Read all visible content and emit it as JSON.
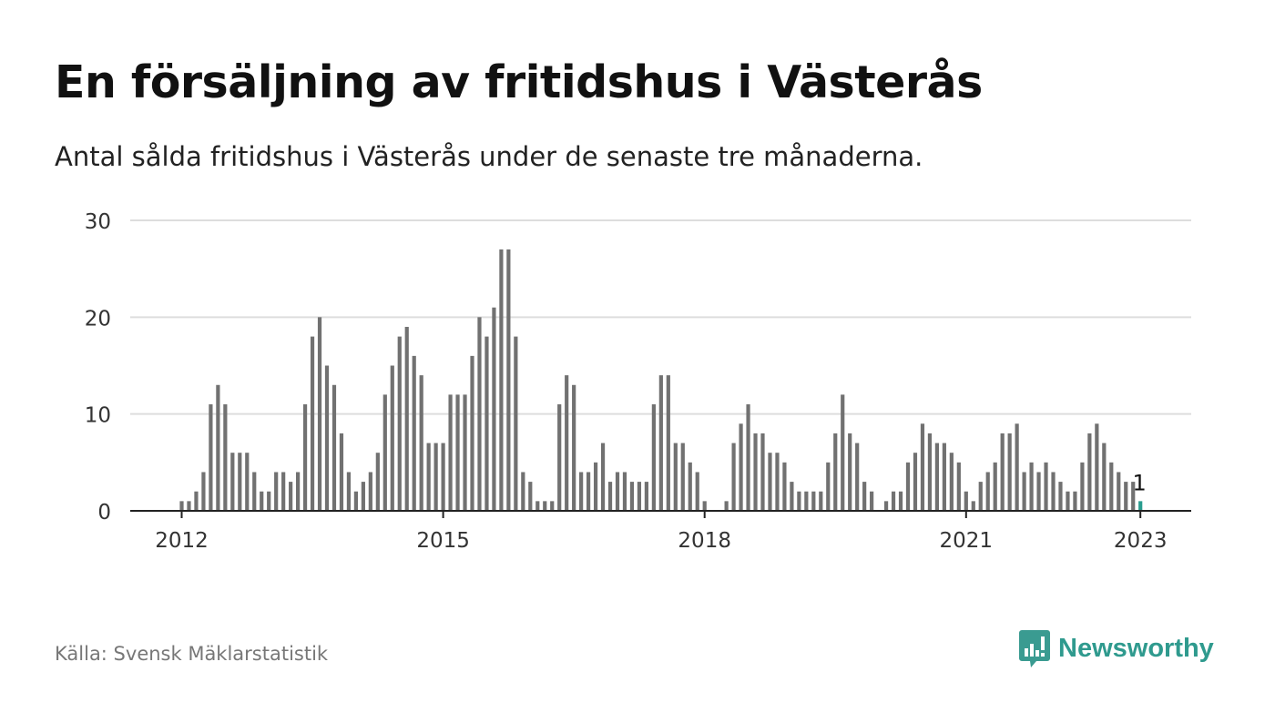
{
  "title": "En försäljning av fritidshus i Västerås",
  "subtitle": "Antal sålda fritidshus i Västerås under de senaste tre månaderna.",
  "source": "Källa: Svensk Mäklarstatistik",
  "brand": {
    "name": "Newsworthy",
    "icon": "newsworthy-logo-icon",
    "color": "#2f9a8e"
  },
  "colors": {
    "bar": "#717171",
    "highlight": "#2a9d8f",
    "grid": "#dddddd",
    "axis": "#222222"
  },
  "chart_data": {
    "type": "bar",
    "title": "En försäljning av fritidshus i Västerås",
    "xlabel": "",
    "ylabel": "",
    "ylim": [
      0,
      30
    ],
    "yticks": [
      0,
      10,
      20,
      30
    ],
    "xticks": [
      "2012",
      "2015",
      "2018",
      "2021",
      "2023"
    ],
    "grid": true,
    "legend": "none",
    "highlight_label": "1",
    "x": [
      "2012-01",
      "2012-02",
      "2012-03",
      "2012-04",
      "2012-05",
      "2012-06",
      "2012-07",
      "2012-08",
      "2012-09",
      "2012-10",
      "2012-11",
      "2012-12",
      "2013-01",
      "2013-02",
      "2013-03",
      "2013-04",
      "2013-05",
      "2013-06",
      "2013-07",
      "2013-08",
      "2013-09",
      "2013-10",
      "2013-11",
      "2013-12",
      "2014-01",
      "2014-02",
      "2014-03",
      "2014-04",
      "2014-05",
      "2014-06",
      "2014-07",
      "2014-08",
      "2014-09",
      "2014-10",
      "2014-11",
      "2014-12",
      "2015-01",
      "2015-02",
      "2015-03",
      "2015-04",
      "2015-05",
      "2015-06",
      "2015-07",
      "2015-08",
      "2015-09",
      "2015-10",
      "2015-11",
      "2015-12",
      "2016-01",
      "2016-02",
      "2016-03",
      "2016-04",
      "2016-05",
      "2016-06",
      "2016-07",
      "2016-08",
      "2016-09",
      "2016-10",
      "2016-11",
      "2016-12",
      "2017-01",
      "2017-02",
      "2017-03",
      "2017-04",
      "2017-05",
      "2017-06",
      "2017-07",
      "2017-08",
      "2017-09",
      "2017-10",
      "2017-11",
      "2017-12",
      "2018-01",
      "2018-02",
      "2018-03",
      "2018-04",
      "2018-05",
      "2018-06",
      "2018-07",
      "2018-08",
      "2018-09",
      "2018-10",
      "2018-11",
      "2018-12",
      "2019-01",
      "2019-02",
      "2019-03",
      "2019-04",
      "2019-05",
      "2019-06",
      "2019-07",
      "2019-08",
      "2019-09",
      "2019-10",
      "2019-11",
      "2019-12",
      "2020-01",
      "2020-02",
      "2020-03",
      "2020-04",
      "2020-05",
      "2020-06",
      "2020-07",
      "2020-08",
      "2020-09",
      "2020-10",
      "2020-11",
      "2020-12",
      "2021-01",
      "2021-02",
      "2021-03",
      "2021-04",
      "2021-05",
      "2021-06",
      "2021-07",
      "2021-08",
      "2021-09",
      "2021-10",
      "2021-11",
      "2021-12",
      "2022-01",
      "2022-02",
      "2022-03",
      "2022-04",
      "2022-05",
      "2022-06",
      "2022-07",
      "2022-08",
      "2022-09",
      "2022-10",
      "2022-11",
      "2022-12",
      "2023-01"
    ],
    "values": [
      1,
      1,
      2,
      4,
      11,
      13,
      11,
      6,
      6,
      6,
      4,
      2,
      2,
      4,
      4,
      3,
      4,
      11,
      18,
      20,
      15,
      13,
      8,
      4,
      2,
      3,
      4,
      6,
      12,
      15,
      18,
      19,
      16,
      14,
      7,
      7,
      7,
      12,
      12,
      12,
      16,
      20,
      18,
      21,
      27,
      27,
      18,
      4,
      3,
      1,
      1,
      1,
      11,
      14,
      13,
      4,
      4,
      5,
      7,
      3,
      4,
      4,
      3,
      3,
      3,
      11,
      14,
      14,
      7,
      7,
      5,
      4,
      1,
      0,
      0,
      1,
      7,
      9,
      11,
      8,
      8,
      6,
      6,
      5,
      3,
      2,
      2,
      2,
      2,
      5,
      8,
      12,
      8,
      7,
      3,
      2,
      0,
      1,
      2,
      2,
      5,
      6,
      9,
      8,
      7,
      7,
      6,
      5,
      2,
      1,
      3,
      4,
      5,
      8,
      8,
      9,
      4,
      5,
      4,
      5,
      4,
      3,
      2,
      2,
      5,
      8,
      9,
      7,
      5,
      4,
      3,
      3,
      1
    ]
  }
}
